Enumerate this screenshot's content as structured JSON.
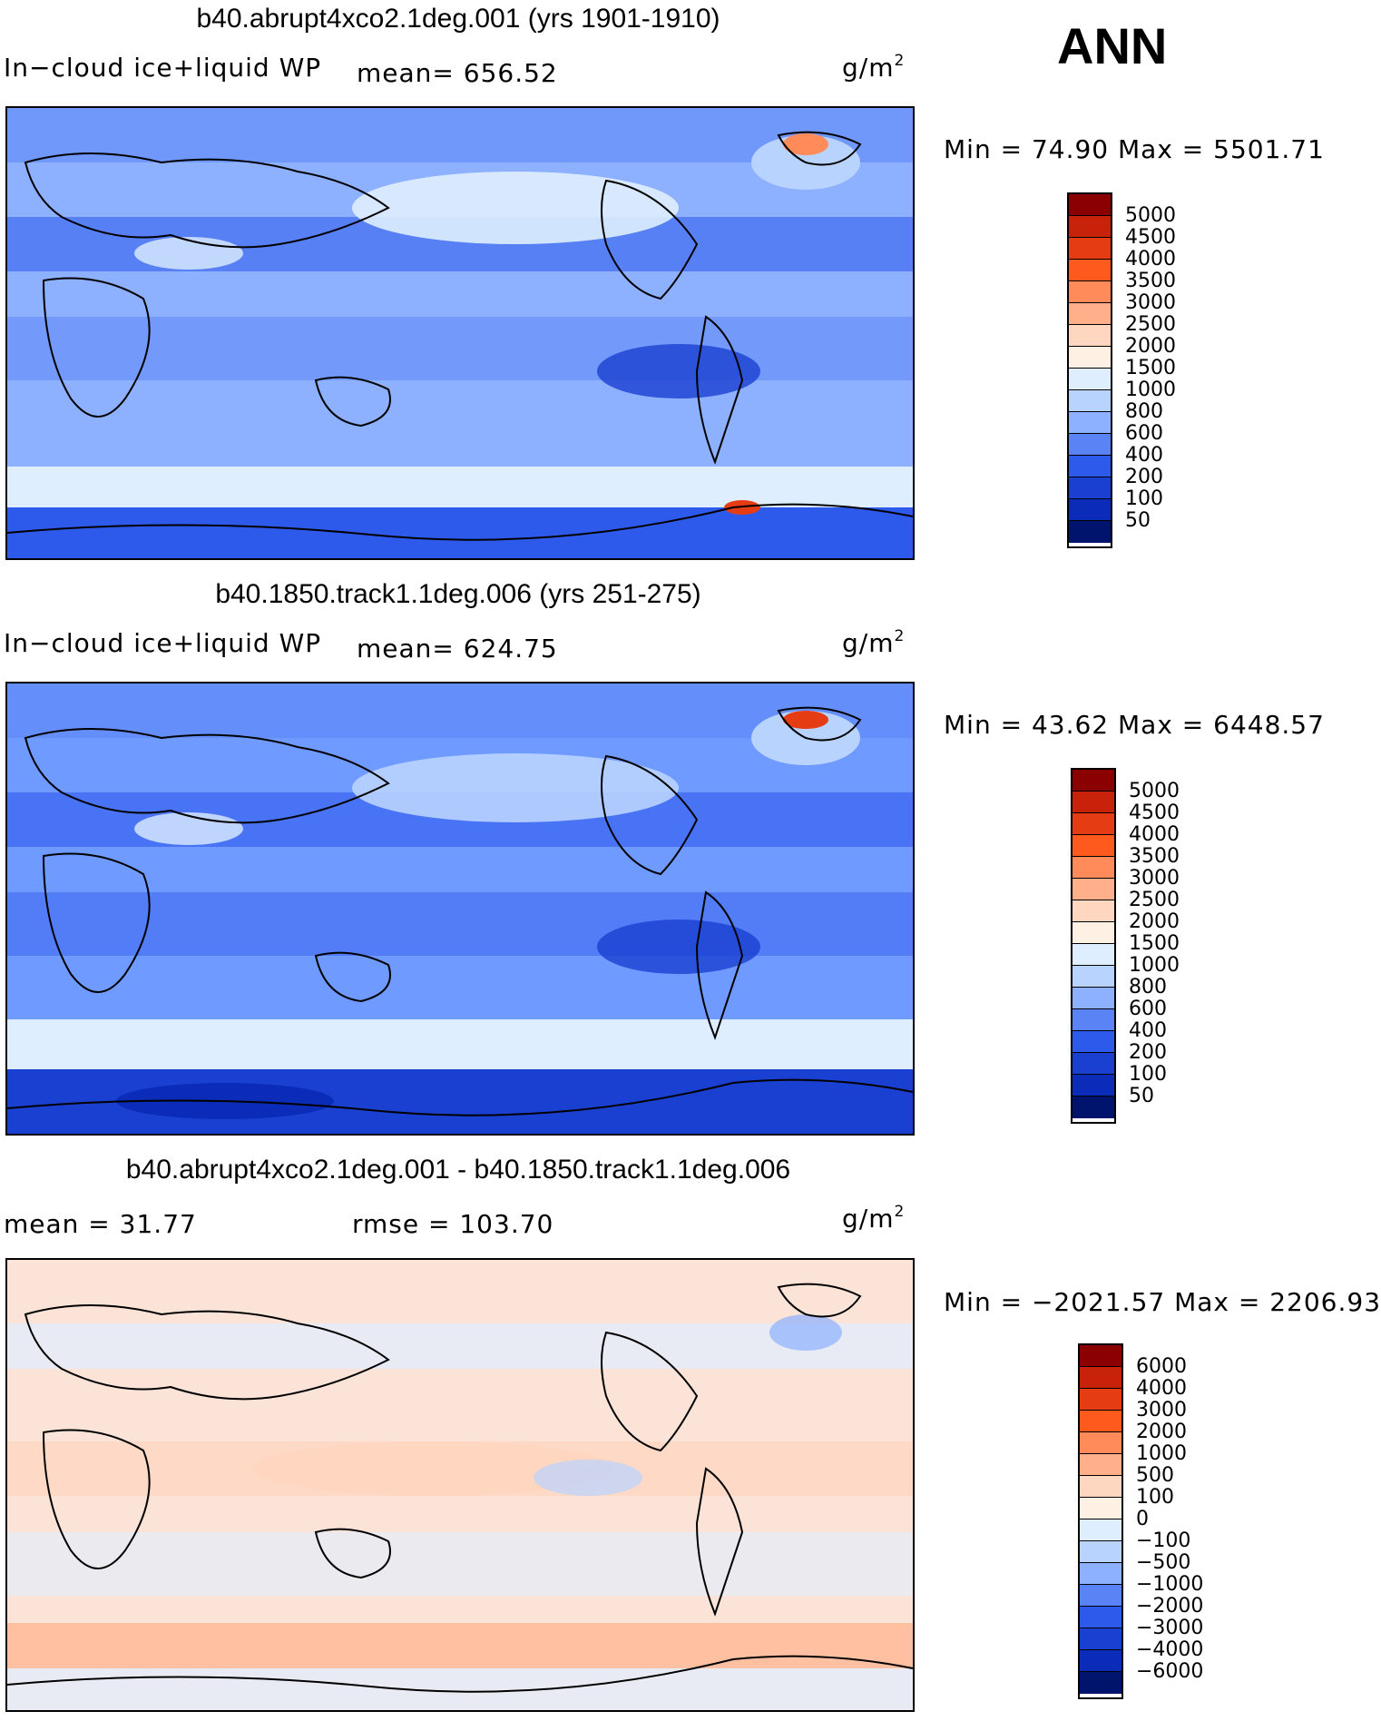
{
  "season": "ANN",
  "units_base": "g/m",
  "units_exp": "2",
  "panels": [
    {
      "title": "b40.abrupt4xco2.1deg.001 (yrs 1901-1910)",
      "left_label": "In−cloud ice+liquid WP",
      "stat_label": "mean= 656.52",
      "minmax": "Min =   74.90  Max  =  5501.71",
      "base": "#8db0ff",
      "levels": [
        "5000",
        "4500",
        "4000",
        "3500",
        "3000",
        "2500",
        "2000",
        "1500",
        "1000",
        "800",
        "600",
        "400",
        "200",
        "100",
        "50"
      ],
      "colors": [
        "#8b0000",
        "#c8220a",
        "#e63c14",
        "#ff5a1e",
        "#ff8a5a",
        "#ffb08a",
        "#ffd6c0",
        "#fff0e4",
        "#dfeeff",
        "#b9d3ff",
        "#8db0ff",
        "#5a84f5",
        "#2e5aec",
        "#1a40d2",
        "#0a2cb8",
        "#00146e"
      ]
    },
    {
      "title": "b40.1850.track1.1deg.006 (yrs 251-275)",
      "left_label": "In−cloud ice+liquid WP",
      "stat_label": "mean= 624.75",
      "minmax": "Min =   43.62  Max  =  6448.57",
      "base": "#6f9aff",
      "levels": [
        "5000",
        "4500",
        "4000",
        "3500",
        "3000",
        "2500",
        "2000",
        "1500",
        "1000",
        "800",
        "600",
        "400",
        "200",
        "100",
        "50"
      ],
      "colors": [
        "#8b0000",
        "#c8220a",
        "#e63c14",
        "#ff5a1e",
        "#ff8a5a",
        "#ffb08a",
        "#ffd6c0",
        "#fff0e4",
        "#dfeeff",
        "#b9d3ff",
        "#8db0ff",
        "#5a84f5",
        "#2e5aec",
        "#1a40d2",
        "#0a2cb8",
        "#00146e"
      ]
    },
    {
      "title": "b40.abrupt4xco2.1deg.001 - b40.1850.track1.1deg.006",
      "left_label": "mean =   31.77",
      "stat_label": "rmse  =  103.70",
      "minmax": "Min = −2021.57  Max  =  2206.93",
      "base": "#fbe3d8",
      "levels": [
        "6000",
        "4000",
        "3000",
        "2000",
        "1000",
        "500",
        "100",
        "0",
        "−100",
        "−500",
        "−1000",
        "−2000",
        "−3000",
        "−4000",
        "−6000"
      ],
      "colors": [
        "#8b0000",
        "#c8220a",
        "#e63c14",
        "#ff5a1e",
        "#ff8a5a",
        "#ffb08a",
        "#ffd6c0",
        "#fff0e4",
        "#dfeeff",
        "#b9d3ff",
        "#8db0ff",
        "#5a84f5",
        "#2e5aec",
        "#1a40d2",
        "#0a2cb8",
        "#00146e"
      ]
    }
  ]
}
